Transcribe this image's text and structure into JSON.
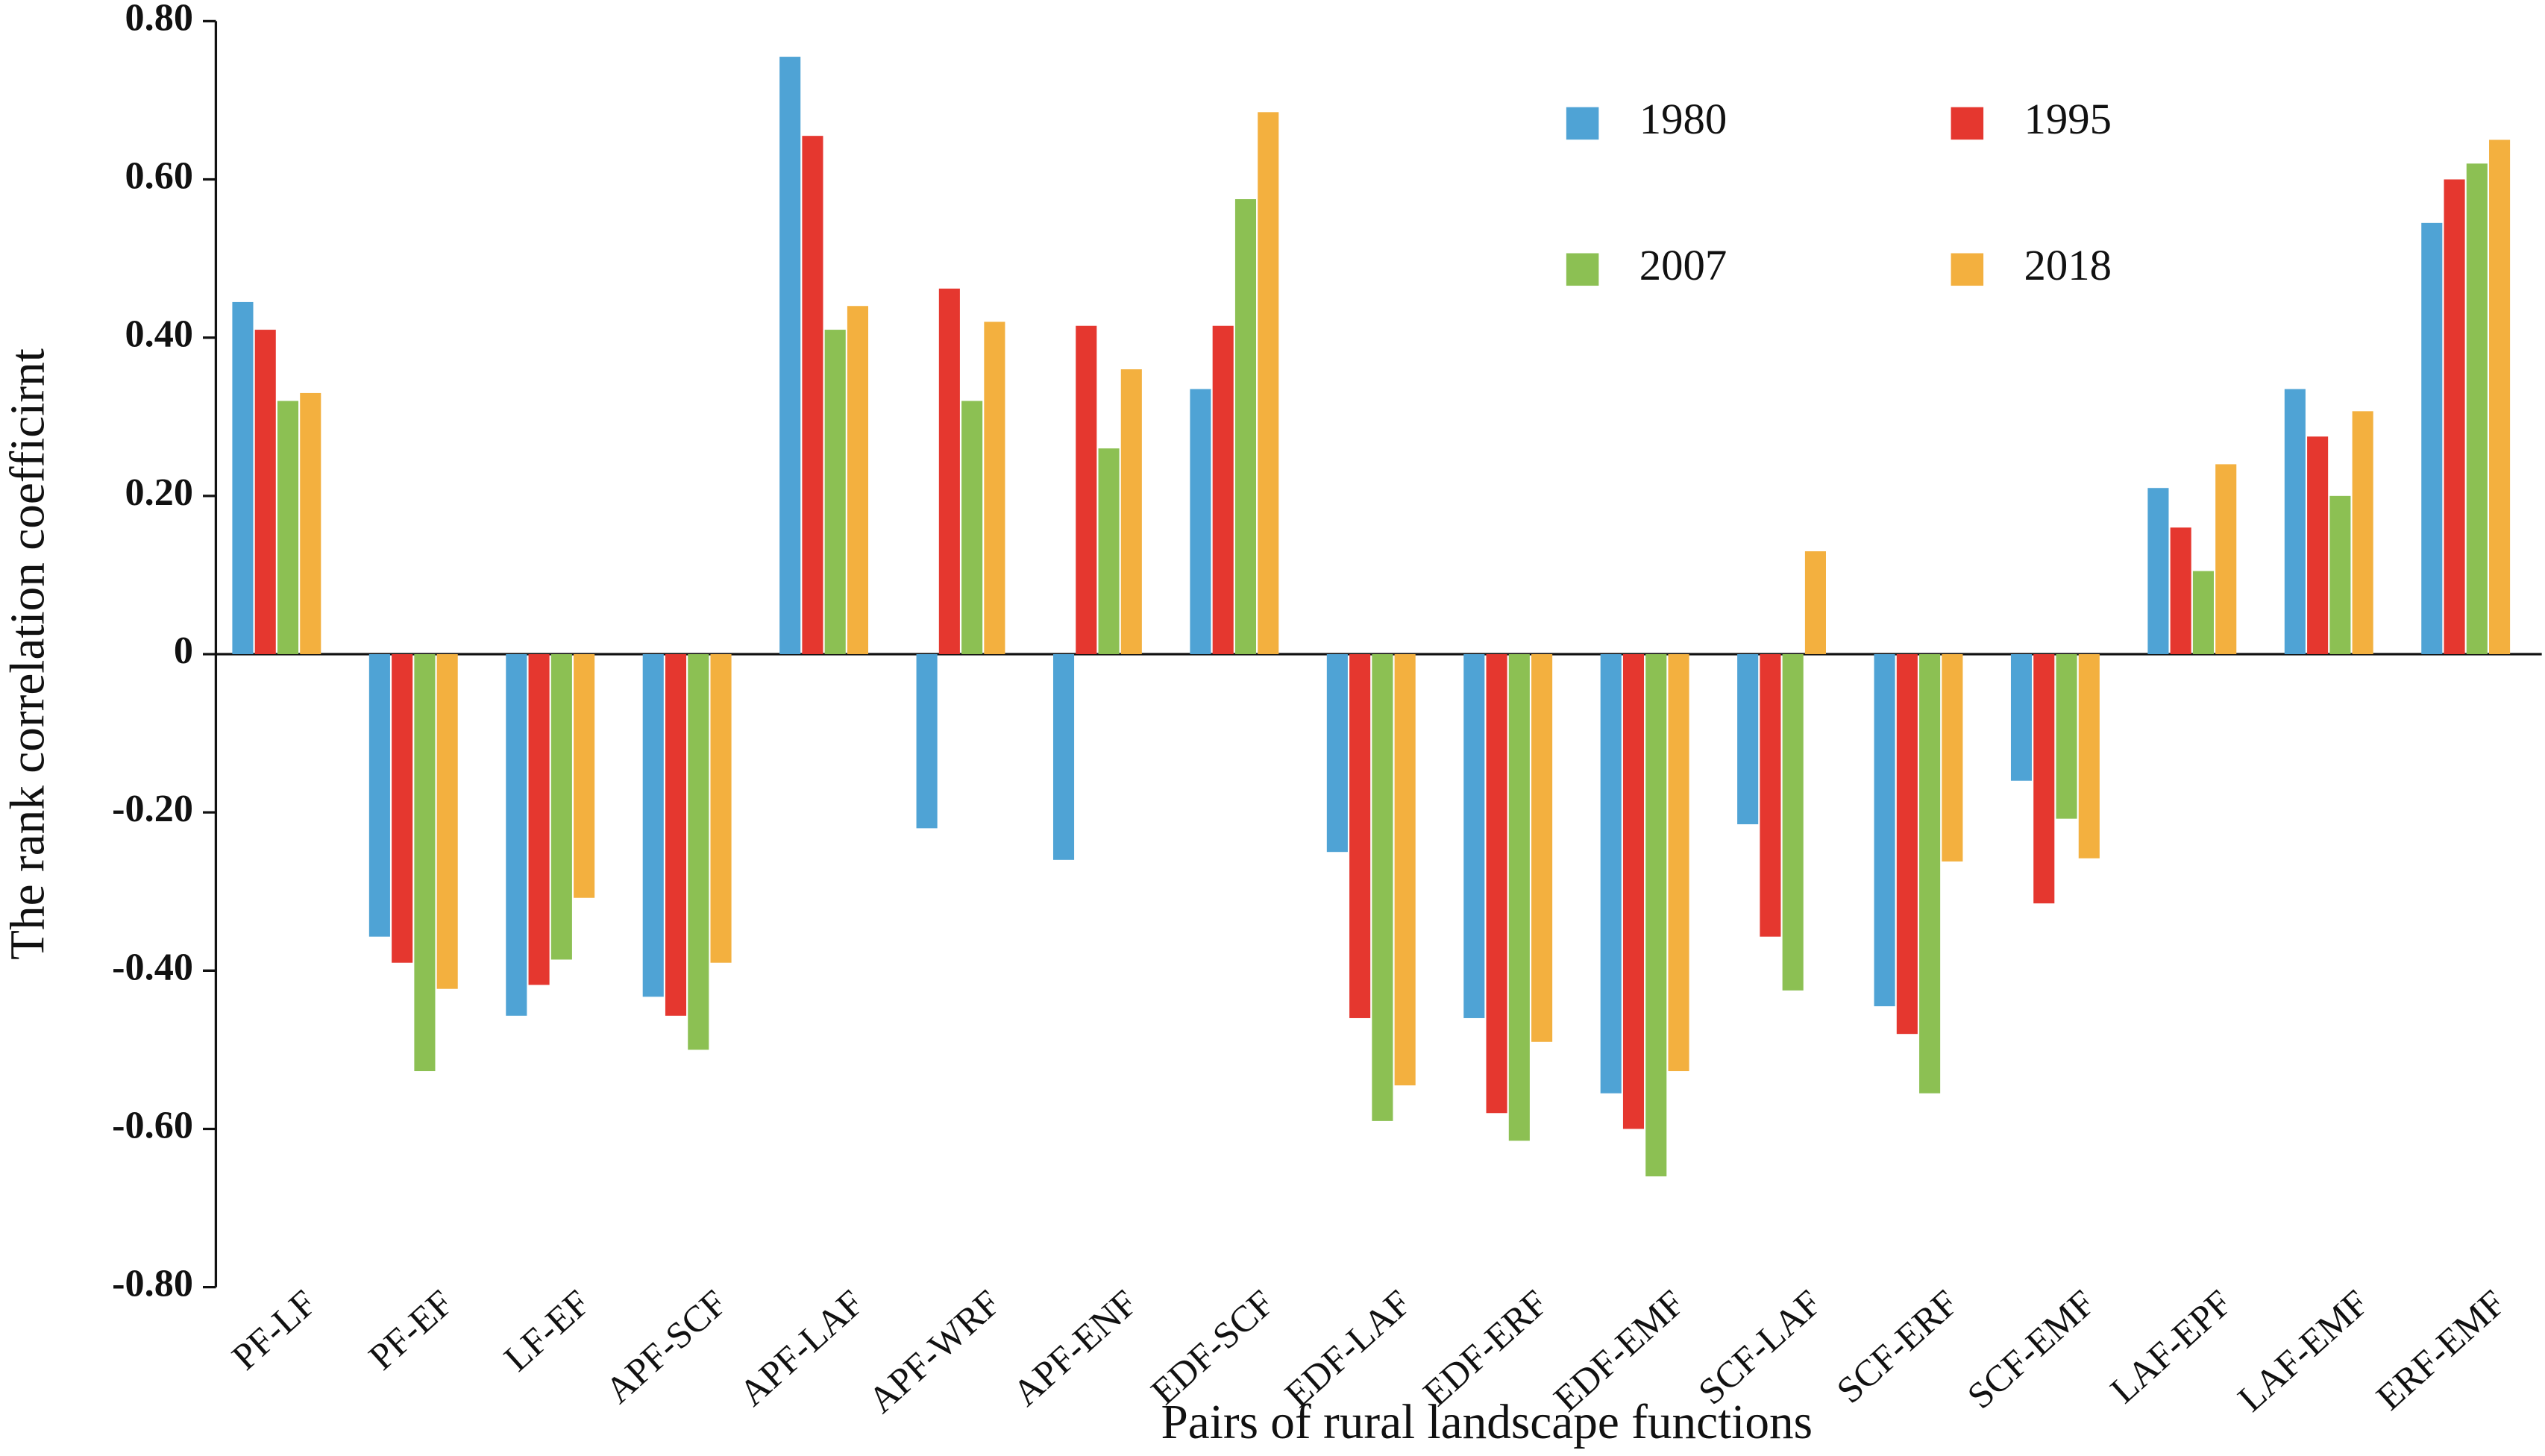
{
  "chart_data": {
    "type": "bar",
    "x_label": "Pairs of rural landscape functions",
    "y_label": "The rank correlation coefficirnt",
    "categories": [
      "PF-LF",
      "PF-EF",
      "LF-EF",
      "APF-SCF",
      "APF-LAF",
      "APF-WRF",
      "APF-ENF",
      "EDF-SCF",
      "EDF-LAF",
      "EDF-ERF",
      "EDF-EMF",
      "SCF-LAF",
      "SCF-ERF",
      "SCF-EMF",
      "LAF-EPF",
      "LAF-EMF",
      "ERF-EMF"
    ],
    "series": [
      {
        "name": "1980",
        "color": "#4fa3d5",
        "values": [
          0.445,
          -0.357,
          -0.457,
          -0.433,
          0.755,
          -0.22,
          -0.26,
          0.335,
          -0.25,
          -0.46,
          -0.555,
          -0.215,
          -0.445,
          -0.16,
          0.21,
          0.335,
          0.545
        ]
      },
      {
        "name": "1995",
        "color": "#e5372f",
        "values": [
          0.41,
          -0.39,
          -0.418,
          -0.457,
          0.655,
          0.462,
          0.415,
          0.415,
          -0.46,
          -0.58,
          -0.6,
          -0.357,
          -0.48,
          -0.315,
          0.16,
          0.275,
          0.6
        ]
      },
      {
        "name": "2007",
        "color": "#8cc053",
        "values": [
          0.32,
          -0.527,
          -0.386,
          -0.5,
          0.41,
          0.32,
          0.26,
          0.575,
          -0.59,
          -0.615,
          -0.66,
          -0.425,
          -0.555,
          -0.208,
          0.105,
          0.2,
          0.62
        ]
      },
      {
        "name": "2018",
        "color": "#f3b03f",
        "values": [
          0.33,
          -0.423,
          -0.308,
          -0.39,
          0.44,
          0.42,
          0.36,
          0.685,
          -0.545,
          -0.49,
          -0.527,
          0.13,
          -0.262,
          -0.258,
          0.24,
          0.307,
          0.65
        ]
      }
    ],
    "ylim": [
      -0.8,
      0.8
    ],
    "yticks": [
      {
        "value": -0.8,
        "label": "-0.80"
      },
      {
        "value": -0.6,
        "label": "-0.60"
      },
      {
        "value": -0.4,
        "label": "-0.40"
      },
      {
        "value": -0.2,
        "label": "-0.20"
      },
      0,
      {
        "value": 0.2,
        "label": "0.20"
      },
      {
        "value": 0.4,
        "label": "0.40"
      },
      {
        "value": 0.6,
        "label": "0.60"
      },
      {
        "value": 0.8,
        "label": "0.80"
      }
    ],
    "grid": false
  }
}
